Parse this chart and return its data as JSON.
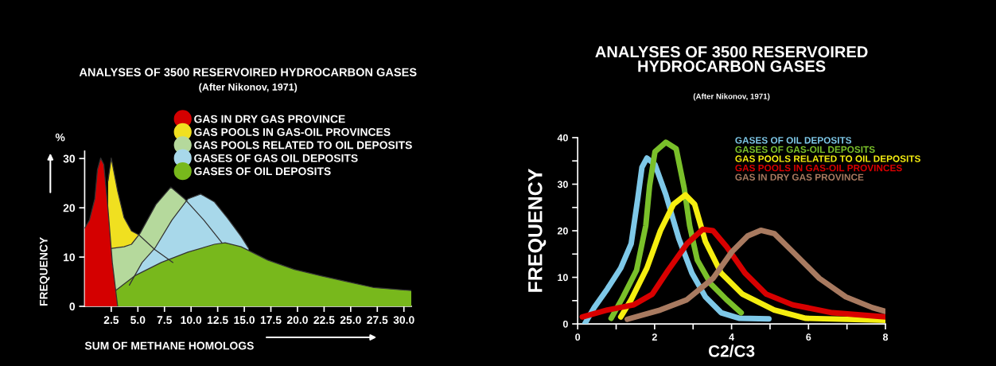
{
  "chart_data": [
    {
      "type": "area",
      "title": "ANALYSES OF 3500 RESERVOIRED HYDROCARBON GASES",
      "subtitle": "(After Nikonov, 1971)",
      "xlabel": "SUM OF METHANE HOMOLOGS",
      "ylabel": "FREQUENCY",
      "annotations": [
        "%"
      ],
      "xlim": [
        0,
        30.7
      ],
      "ylim": [
        0,
        31.5
      ],
      "xticks": [
        {
          "value": 2.5,
          "label": "2.5"
        },
        {
          "value": 5,
          "label": "5.0"
        },
        {
          "value": 7.5,
          "label": "7.5"
        },
        {
          "value": 10,
          "label": "10.0"
        },
        {
          "value": 12.5,
          "label": "12.5"
        },
        {
          "value": 15,
          "label": "15.0"
        },
        {
          "value": 17.5,
          "label": "17.5"
        },
        {
          "value": 20,
          "label": "20.0"
        },
        {
          "value": 22.5,
          "label": "22.5"
        },
        {
          "value": 25,
          "label": "25.0"
        },
        {
          "value": 27.5,
          "label": "27.5"
        },
        {
          "value": 30,
          "label": "30.0"
        }
      ],
      "yticks": [
        0,
        10,
        20,
        30
      ],
      "legend": "top right",
      "series": [
        {
          "name": "GAS IN DRY GAS PROVINCE",
          "color": "#d40000",
          "x": [
            0,
            0.45,
            0.95,
            1.2,
            1.5,
            1.8,
            2.2,
            2.6,
            3.1
          ],
          "values": [
            15.9,
            17.5,
            21.8,
            27.7,
            30.1,
            28.8,
            19.6,
            8.9,
            0
          ]
        },
        {
          "name": "GAS POOLS IN GAS-OIL PROVINCES",
          "color": "#f0e020",
          "x": [
            2.2,
            2.5,
            3.1,
            3.7,
            4.4,
            5.1,
            6.6,
            8.3
          ],
          "values": [
            25.5,
            30.1,
            23.4,
            18,
            15.3,
            14.5,
            11.5,
            8.9
          ]
        },
        {
          "name": "GAS POOLS RELATED TO OIL DEPOSITS",
          "color": "#b5d99c",
          "x": [
            2.3,
            3.7,
            4.4,
            5.2,
            6.7,
            8.1,
            9.4,
            11.2,
            12.9
          ],
          "values": [
            11.7,
            12.1,
            12.6,
            14.8,
            20.7,
            24.2,
            21.8,
            17.5,
            12.9
          ]
        },
        {
          "name": "GASES OF GAS OIL DEPOSITS",
          "color": "#a8d8ea",
          "x": [
            4.2,
            5.4,
            6.6,
            8.2,
            9.7,
            10.9,
            12.2,
            13.4,
            14.7,
            15.4
          ],
          "values": [
            4.3,
            8.9,
            11.8,
            17.5,
            21.8,
            22.8,
            21.2,
            18,
            14.2,
            11.8
          ]
        },
        {
          "name": "GASES OF OIL DEPOSITS",
          "color": "#78b81c",
          "x": [
            2.9,
            4.7,
            7.2,
            9.7,
            12.2,
            13.2,
            14.7,
            17.2,
            19.7,
            22.2,
            24.7,
            27.2,
            30.7
          ],
          "values": [
            3.2,
            6.2,
            8.9,
            11,
            12.6,
            12.9,
            12.1,
            9.4,
            7.5,
            6.2,
            5,
            3.8,
            3.2
          ]
        }
      ]
    },
    {
      "type": "line",
      "title": "ANALYSES OF 3500 RESERVOIRED\nHYDROCARBON GASES",
      "subtitle": "(After Nikonov, 1971)",
      "xlabel": "C2/C3",
      "ylabel": "FREQUENCY",
      "xlim": [
        0,
        8
      ],
      "ylim": [
        0,
        40
      ],
      "xticks": [
        0,
        {
          "value": 1,
          "label": null
        },
        2,
        {
          "value": 3,
          "label": null
        },
        4,
        {
          "value": 5,
          "label": null
        },
        6,
        {
          "value": 7,
          "label": null
        },
        8
      ],
      "yticks": [
        0,
        {
          "value": 5,
          "label": null
        },
        10,
        {
          "value": 15,
          "label": null
        },
        20,
        {
          "value": 25,
          "label": null
        },
        30,
        {
          "value": 35,
          "label": null
        },
        40
      ],
      "legend": "top right",
      "series": [
        {
          "name": "GASES OF OIL DEPOSITS",
          "color": "#7ec8e8",
          "x": [
            0.19,
            0.43,
            0.77,
            1.12,
            1.39,
            1.56,
            1.67,
            1.8,
            2.01,
            2.29,
            2.63,
            2.97,
            3.32,
            3.73,
            4.21,
            4.97
          ],
          "values": [
            0.1,
            3.5,
            7.5,
            12,
            17.2,
            26.8,
            33.6,
            35.6,
            34.2,
            27.8,
            18.3,
            10.9,
            5.8,
            2.4,
            1.2,
            1.1
          ]
        },
        {
          "name": "GASES OF GAS-OIL DEPOSITS",
          "color": "#7ac02a",
          "x": [
            0.87,
            1.18,
            1.53,
            1.77,
            1.87,
            2.01,
            2.29,
            2.56,
            2.77,
            2.91,
            3.11,
            3.46,
            3.87,
            4.25
          ],
          "values": [
            1.2,
            5.8,
            11.5,
            21.1,
            29.7,
            37,
            39,
            37.6,
            29.1,
            21.1,
            13.7,
            8.6,
            5.2,
            2.4
          ]
        },
        {
          "name": "GAS POOLS RELATED TO OIL DEPOSITS",
          "color": "#f5ee10",
          "x": [
            1.12,
            1.39,
            1.8,
            2.15,
            2.49,
            2.8,
            3.04,
            3.32,
            3.73,
            4.28,
            5.11,
            5.93,
            8
          ],
          "values": [
            1.5,
            5.2,
            12,
            20,
            25.7,
            27.7,
            25.7,
            17.7,
            10.9,
            6.4,
            3,
            1.2,
            0.8
          ]
        },
        {
          "name": "GAS POOLS IN GAS-OIL PROVINCES",
          "color": "#d80000",
          "x": [
            0.12,
            0.77,
            1.46,
            1.94,
            2.35,
            2.84,
            3.25,
            3.52,
            3.87,
            4.35,
            4.9,
            5.59,
            6.62,
            8
          ],
          "values": [
            1.5,
            3,
            4.1,
            6.4,
            11.5,
            17.2,
            20.3,
            20,
            16.6,
            10.9,
            6.4,
            4.1,
            2.4,
            1.5
          ]
        },
        {
          "name": "GAS IN DRY GAS PROVINCE",
          "color": "#a87a60",
          "x": [
            1.29,
            2.15,
            2.84,
            3.52,
            4.01,
            4.42,
            4.76,
            5.11,
            5.59,
            6.28,
            6.97,
            7.66,
            8
          ],
          "values": [
            1,
            3,
            5.2,
            9.8,
            15.5,
            18.9,
            20.1,
            19.4,
            15.5,
            9.8,
            5.8,
            3.5,
            2.7
          ]
        }
      ]
    }
  ]
}
